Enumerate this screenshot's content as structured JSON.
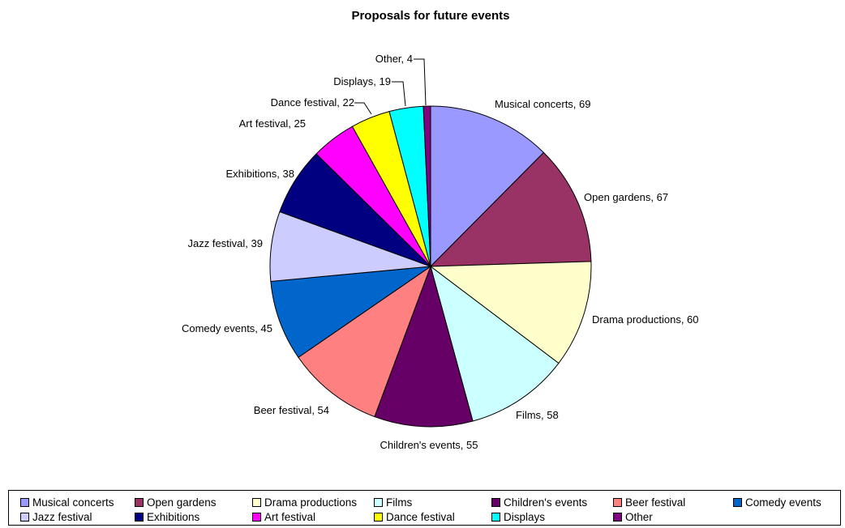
{
  "chart_data": {
    "type": "pie",
    "title": "Proposals for future events",
    "legend_position": "bottom",
    "slices": [
      {
        "label": "Musical concerts",
        "value": 69,
        "color": "#9999FF"
      },
      {
        "label": "Open gardens",
        "value": 67,
        "color": "#993366"
      },
      {
        "label": "Drama productions",
        "value": 60,
        "color": "#FFFFCC"
      },
      {
        "label": "Films",
        "value": 58,
        "color": "#CCFFFF"
      },
      {
        "label": "Children's events",
        "value": 55,
        "color": "#660066"
      },
      {
        "label": "Beer festival",
        "value": 54,
        "color": "#FF8080"
      },
      {
        "label": "Comedy events",
        "value": 45,
        "color": "#0066CC"
      },
      {
        "label": "Jazz festival",
        "value": 39,
        "color": "#CCCCFF"
      },
      {
        "label": "Exhibitions",
        "value": 38,
        "color": "#000080"
      },
      {
        "label": "Art festival",
        "value": 25,
        "color": "#FF00FF"
      },
      {
        "label": "Dance festival",
        "value": 22,
        "color": "#FFFF00"
      },
      {
        "label": "Displays",
        "value": 19,
        "color": "#00FFFF"
      },
      {
        "label": "Other",
        "value": 4,
        "color": "#800080"
      }
    ]
  }
}
